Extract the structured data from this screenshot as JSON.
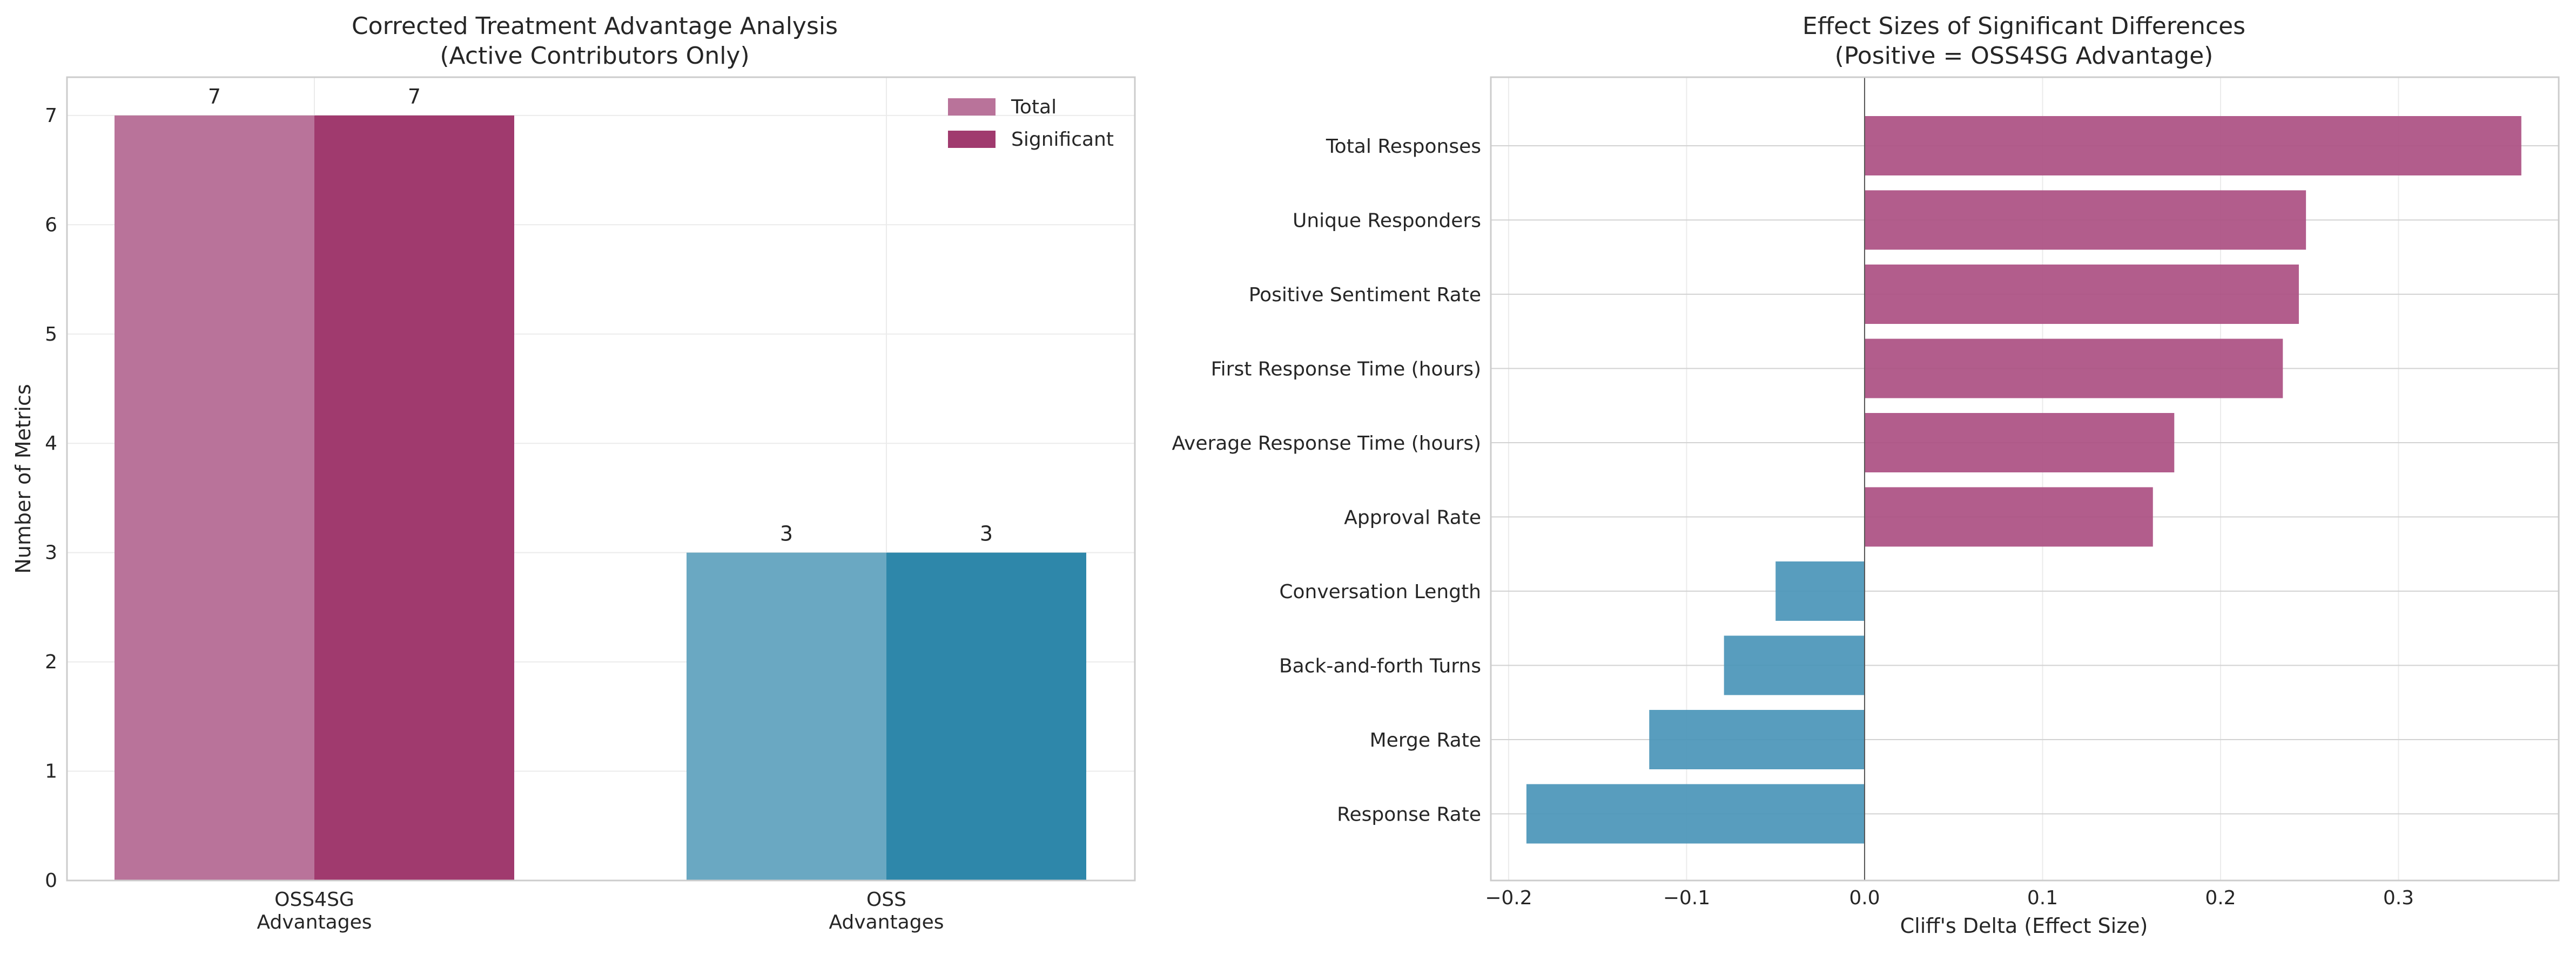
{
  "chart_data": [
    {
      "type": "bar",
      "title": "Corrected Treatment Advantage Analysis",
      "subtitle": "(Active Contributors Only)",
      "xlabel": "",
      "ylabel": "Number of Metrics",
      "categories": [
        [
          "OSS4SG",
          "Advantages"
        ],
        [
          "OSS",
          "Advantages"
        ]
      ],
      "series": [
        {
          "name": "Total",
          "values": [
            7,
            3
          ]
        },
        {
          "name": "Significant",
          "values": [
            7,
            3
          ]
        }
      ],
      "category_colors": {
        "OSS4SG": {
          "Total": "#b9739a",
          "Significant": "#a03a6e"
        },
        "OSS": {
          "Total": "#6aa8c2",
          "Significant": "#2e87aa"
        }
      },
      "ylim": [
        0,
        7.35
      ],
      "yticks": [
        0,
        1,
        2,
        3,
        4,
        5,
        6,
        7
      ],
      "legend_position": "top-right",
      "grid": true,
      "data_labels": true
    },
    {
      "type": "bar",
      "orientation": "horizontal",
      "title": "Effect Sizes of Significant Differences",
      "subtitle": "(Positive = OSS4SG Advantage)",
      "xlabel": "Cliff's Delta (Effect Size)",
      "ylabel": "",
      "categories": [
        "Total Responses",
        "Unique Responders",
        "Positive Sentiment Rate",
        "First Response Time (hours)",
        "Average Response Time (hours)",
        "Approval Rate",
        "Conversation Length",
        "Back-and-forth Turns",
        "Merge Rate",
        "Response Rate"
      ],
      "values": [
        0.369,
        0.248,
        0.244,
        0.235,
        0.174,
        0.162,
        -0.05,
        -0.079,
        -0.121,
        -0.19
      ],
      "xlim": [
        -0.21,
        0.39
      ],
      "xticks": [
        -0.2,
        -0.1,
        0.0,
        0.1,
        0.2,
        0.3
      ],
      "xtick_labels": [
        "−0.2",
        "−0.1",
        "0.0",
        "0.1",
        "0.2",
        "0.3"
      ],
      "colors": {
        "positive": "#ab4f82",
        "negative": "#4a95b8"
      },
      "grid": true
    }
  ]
}
